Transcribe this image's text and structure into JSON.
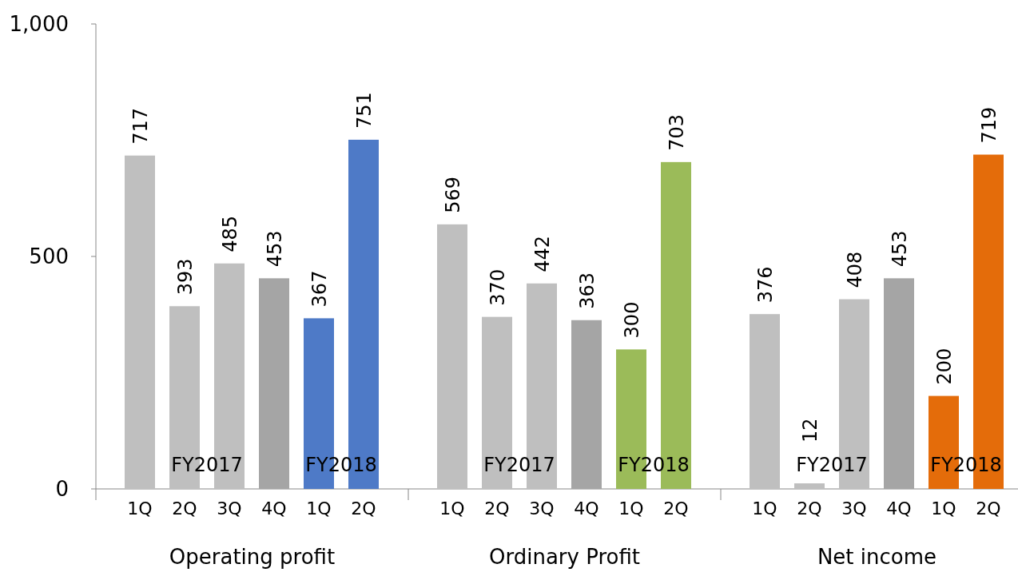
{
  "chart_data": {
    "type": "bar",
    "categories": [
      "1Q",
      "2Q",
      "3Q",
      "4Q",
      "1Q",
      "2Q",
      "1Q",
      "2Q",
      "3Q",
      "4Q",
      "1Q",
      "2Q",
      "1Q",
      "2Q",
      "3Q",
      "4Q",
      "1Q",
      "2Q"
    ],
    "values": [
      717,
      393,
      485,
      453,
      367,
      751,
      569,
      370,
      442,
      363,
      300,
      703,
      376,
      12,
      408,
      453,
      200,
      719
    ],
    "colors": [
      "#bfbfbf",
      "#bfbfbf",
      "#bfbfbf",
      "#a5a5a5",
      "#4e7ac7",
      "#4e7ac7",
      "#bfbfbf",
      "#bfbfbf",
      "#bfbfbf",
      "#a5a5a5",
      "#9bbb59",
      "#9bbb59",
      "#bfbfbf",
      "#bfbfbf",
      "#bfbfbf",
      "#a5a5a5",
      "#e46c0a",
      "#e46c0a"
    ],
    "ylim": [
      0,
      1000
    ],
    "yticks": [
      0,
      500,
      {
        "value": 1000,
        "label": "1,000"
      }
    ],
    "data_labels": true,
    "grid": false,
    "annotations": [
      "FY2017",
      "FY2018",
      "FY2017",
      "FY2018",
      "FY2017",
      "FY2018",
      "Operating profit",
      "Ordinary Profit",
      "Net income"
    ]
  }
}
